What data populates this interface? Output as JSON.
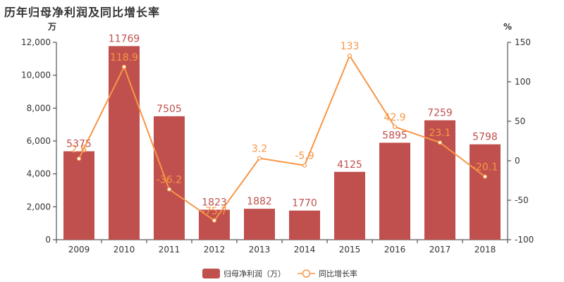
{
  "title": "历年归母净利润及同比增长率",
  "colors": {
    "bar": "#c0504d",
    "line": "#f79646",
    "axis": "#333333"
  },
  "chart_data": {
    "type": "bar",
    "title": "历年归母净利润及同比增长率",
    "categories": [
      "2009",
      "2010",
      "2011",
      "2012",
      "2013",
      "2014",
      "2015",
      "2016",
      "2017",
      "2018"
    ],
    "left_unit": "万",
    "right_unit": "%",
    "ylim_left": [
      0,
      12000
    ],
    "yticks_left": [
      "0",
      "2,000",
      "4,000",
      "6,000",
      "8,000",
      "10,000",
      "12,000"
    ],
    "ylim_right": [
      -100,
      150
    ],
    "yticks_right": [
      "-100",
      "-50",
      "0",
      "50",
      "100",
      "150"
    ],
    "grid": false,
    "legend": "bottom",
    "series": [
      {
        "name": "归母净利润（万）",
        "type": "bar",
        "axis": "left",
        "values": [
          5375,
          11769,
          7505,
          1823,
          1882,
          1770,
          4125,
          5895,
          7259,
          5798
        ],
        "labels": [
          "5375",
          "11769",
          "7505",
          "1823",
          "1882",
          "1770",
          "4125",
          "5895",
          "7259",
          "5798"
        ]
      },
      {
        "name": "同比增长率",
        "type": "line",
        "axis": "right",
        "values": [
          2.6,
          118.9,
          -36.2,
          -75.7,
          3.2,
          -5.9,
          133,
          42.9,
          23.1,
          -20.1
        ],
        "labels": [
          "2.6",
          "118.9",
          "-36.2",
          "-75.7",
          "3.2",
          "-5.9",
          "133",
          "42.9",
          "23.1",
          "-20.1"
        ]
      }
    ]
  }
}
